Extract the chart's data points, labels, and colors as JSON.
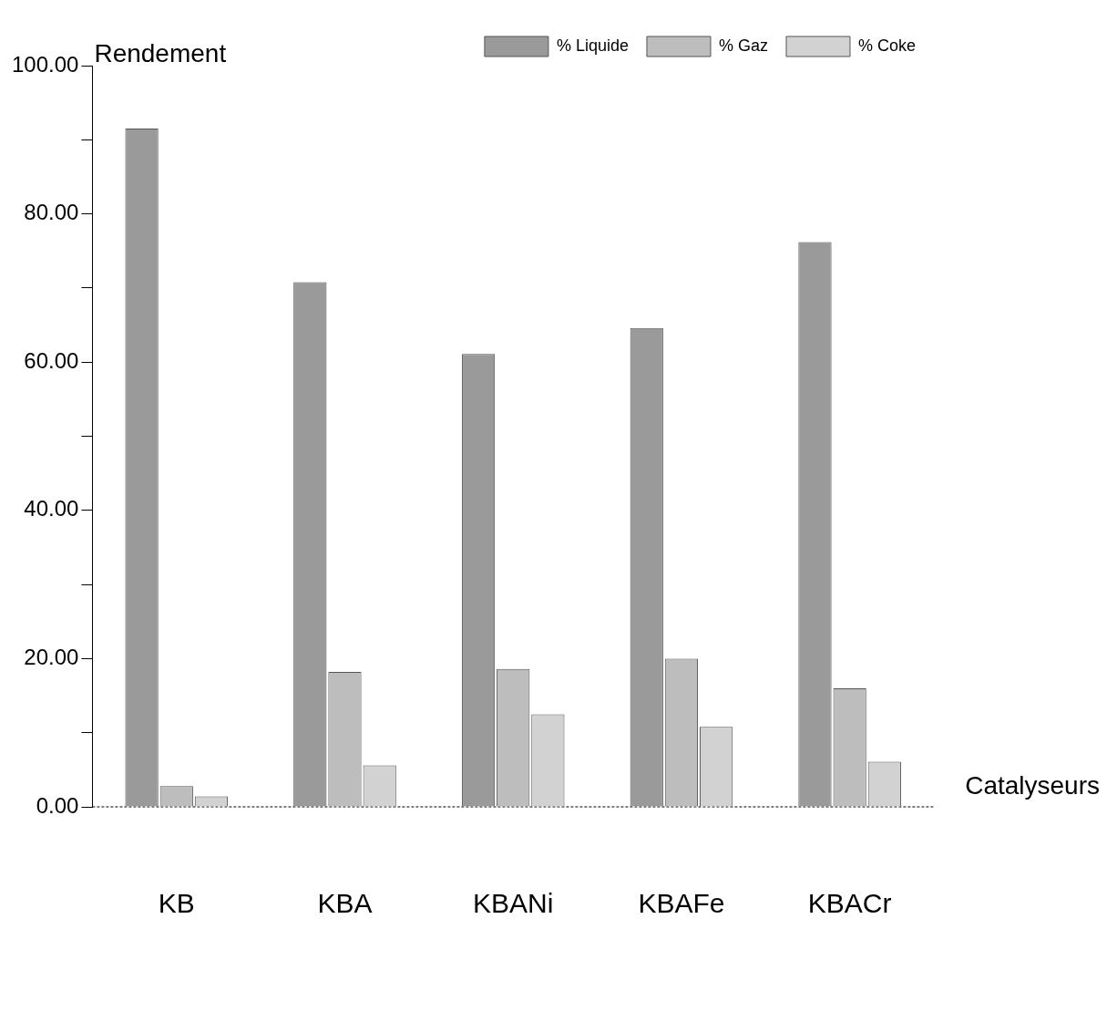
{
  "chart_data": {
    "type": "bar",
    "xlabel": "Catalyseurs",
    "ylabel": "Rendement",
    "categories": [
      "KB",
      "KBA",
      "KBANi",
      "KBAFe",
      "KBACr"
    ],
    "series": [
      {
        "name": "% Liquide",
        "color": "#9a9a9a",
        "values": [
          91.5,
          70.8,
          61.1,
          64.6,
          76.2
        ]
      },
      {
        "name": "% Gaz",
        "color": "#bdbdbd",
        "values": [
          2.8,
          18.2,
          18.6,
          20.0,
          16.0
        ]
      },
      {
        "name": "% Coke",
        "color": "#d2d2d2",
        "values": [
          1.4,
          5.6,
          12.5,
          10.8,
          6.1
        ]
      }
    ],
    "ylim": [
      0,
      100
    ],
    "yticks": [
      {
        "value": 0,
        "label": "0.00"
      },
      {
        "value": 10,
        "label": null
      },
      {
        "value": 20,
        "label": "20.00"
      },
      {
        "value": 30,
        "label": null
      },
      {
        "value": 40,
        "label": "40.00"
      },
      {
        "value": 50,
        "label": null
      },
      {
        "value": 60,
        "label": "60.00"
      },
      {
        "value": 70,
        "label": null
      },
      {
        "value": 80,
        "label": "80.00"
      },
      {
        "value": 90,
        "label": null
      },
      {
        "value": 100,
        "label": "100.00"
      }
    ],
    "grid": false,
    "legend": "top right"
  }
}
